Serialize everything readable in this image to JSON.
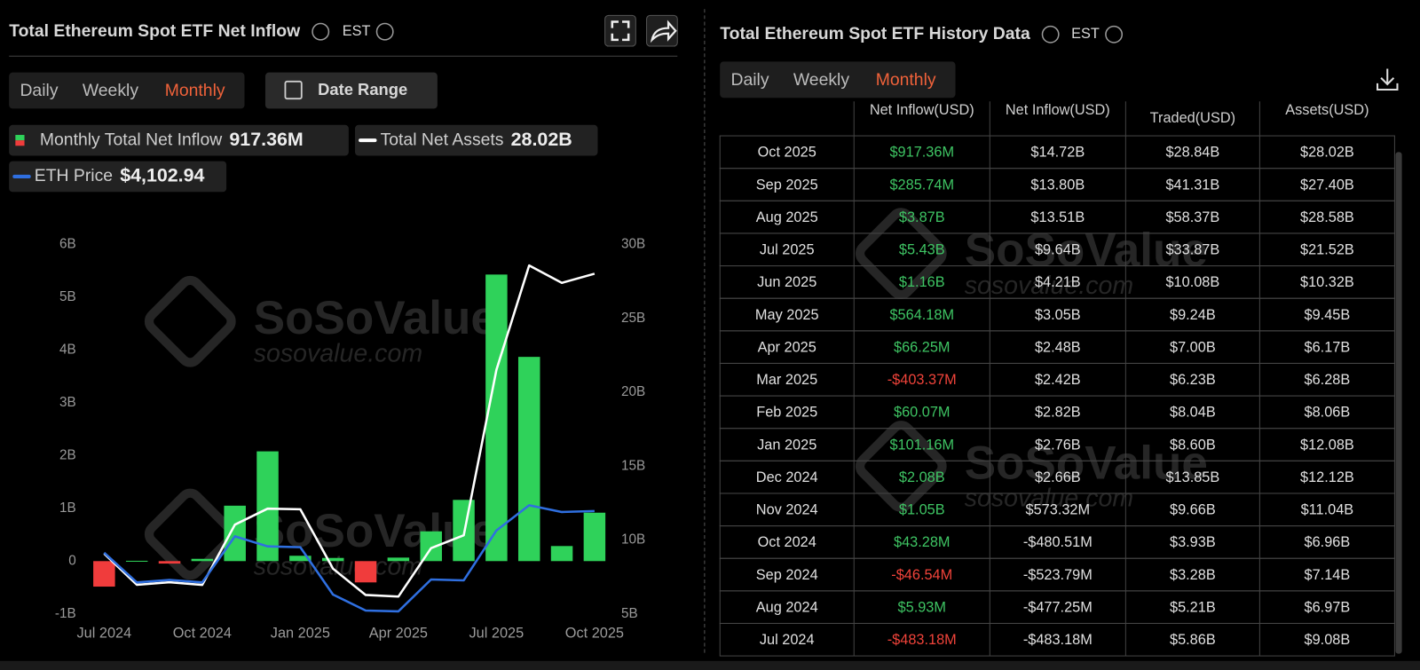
{
  "left": {
    "title": "Total Ethereum Spot ETF Net Inflow",
    "timezone": "EST",
    "tabs": [
      "Daily",
      "Weekly",
      "Monthly"
    ],
    "active_tab": 2,
    "date_range": "Date Range"
  },
  "watermark": "SoSoValue",
  "watermark_url": "sosovalue.com",
  "chart_data": {
    "type": "bar_line",
    "categories": [
      "Jul 2024",
      null,
      null,
      "Oct 2024",
      null,
      null,
      "Jan 2025",
      null,
      null,
      "Apr 2025",
      null,
      null,
      "Jul 2025",
      null,
      null,
      "Oct 2025"
    ],
    "series": [
      {
        "name": "Monthly Total Net Inflow",
        "type": "bar",
        "color": "#2fd25a",
        "negative_color": "#f03c3c",
        "current_label": "917.36M",
        "values": [
          -0.48318,
          0.00593,
          -0.04654,
          0.04328,
          1.05,
          2.08,
          0.10116,
          0.06007,
          -0.40337,
          0.06625,
          0.56418,
          1.16,
          5.43,
          3.87,
          0.28574,
          0.91736
        ]
      },
      {
        "name": "Total Net Assets",
        "type": "line",
        "axis": "y2",
        "color": "#ffffff",
        "current_label": "28.02B",
        "values": [
          9.08,
          6.97,
          7.14,
          6.96,
          11.04,
          12.12,
          12.08,
          8.06,
          6.28,
          6.17,
          9.45,
          10.32,
          21.52,
          28.58,
          27.4,
          28.02
        ]
      },
      {
        "name": "ETH Price",
        "type": "line",
        "axis": "y3",
        "color": "#2f6fe0",
        "current_label": "$4,102.94",
        "values": [
          3110,
          2400,
          2460,
          2400,
          3500,
          3260,
          3240,
          2110,
          1730,
          1710,
          2470,
          2450,
          3640,
          4240,
          4080,
          4102.94
        ]
      }
    ],
    "ylim": [
      -1,
      6
    ],
    "yticks": [
      {
        "value": -1,
        "label": "-1B"
      },
      0,
      {
        "value": 1,
        "label": "1B"
      },
      {
        "value": 2,
        "label": "2B"
      },
      {
        "value": 3,
        "label": "3B"
      },
      {
        "value": 4,
        "label": "4B"
      },
      {
        "value": 5,
        "label": "5B"
      },
      {
        "value": 6,
        "label": "6B"
      }
    ],
    "y2lim": [
      5,
      30
    ],
    "y2ticks": [
      {
        "value": 5,
        "label": "5B"
      },
      {
        "value": 10,
        "label": "10B"
      },
      {
        "value": 15,
        "label": "15B"
      },
      {
        "value": 20,
        "label": "20B"
      },
      {
        "value": 25,
        "label": "25B"
      },
      {
        "value": 30,
        "label": "30B"
      }
    ],
    "y3lim": [
      1650,
      10460
    ],
    "grid": false
  },
  "right": {
    "title": "Total Ethereum Spot ETF History Data",
    "timezone": "EST",
    "tabs": [
      "Daily",
      "Weekly",
      "Monthly"
    ],
    "active_tab": 2,
    "table": {
      "headers": [
        "Net Inflow(USD)",
        "Net Inflow(USD)",
        "Traded(USD)",
        "Assets(USD)"
      ],
      "rows": [
        [
          "Oct 2025",
          "$917.36M",
          "$14.72B",
          "$28.84B",
          "$28.02B"
        ],
        [
          "Sep 2025",
          "$285.74M",
          "$13.80B",
          "$41.31B",
          "$27.40B"
        ],
        [
          "Aug 2025",
          "$3.87B",
          "$13.51B",
          "$58.37B",
          "$28.58B"
        ],
        [
          "Jul 2025",
          "$5.43B",
          "$9.64B",
          "$33.87B",
          "$21.52B"
        ],
        [
          "Jun 2025",
          "$1.16B",
          "$4.21B",
          "$10.08B",
          "$10.32B"
        ],
        [
          "May 2025",
          "$564.18M",
          "$3.05B",
          "$9.24B",
          "$9.45B"
        ],
        [
          "Apr 2025",
          "$66.25M",
          "$2.48B",
          "$7.00B",
          "$6.17B"
        ],
        [
          "Mar 2025",
          "-$403.37M",
          "$2.42B",
          "$6.23B",
          "$6.28B"
        ],
        [
          "Feb 2025",
          "$60.07M",
          "$2.82B",
          "$8.04B",
          "$8.06B"
        ],
        [
          "Jan 2025",
          "$101.16M",
          "$2.76B",
          "$8.60B",
          "$12.08B"
        ],
        [
          "Dec 2024",
          "$2.08B",
          "$2.66B",
          "$13.85B",
          "$12.12B"
        ],
        [
          "Nov 2024",
          "$1.05B",
          "$573.32M",
          "$9.66B",
          "$11.04B"
        ],
        [
          "Oct 2024",
          "$43.28M",
          "-$480.51M",
          "$3.93B",
          "$6.96B"
        ],
        [
          "Sep 2024",
          "-$46.54M",
          "-$523.79M",
          "$3.28B",
          "$7.14B"
        ],
        [
          "Aug 2024",
          "$5.93M",
          "-$477.25M",
          "$5.21B",
          "$6.97B"
        ],
        [
          "Jul 2024",
          "-$483.18M",
          "-$483.18M",
          "$5.86B",
          "$9.08B"
        ]
      ]
    }
  }
}
